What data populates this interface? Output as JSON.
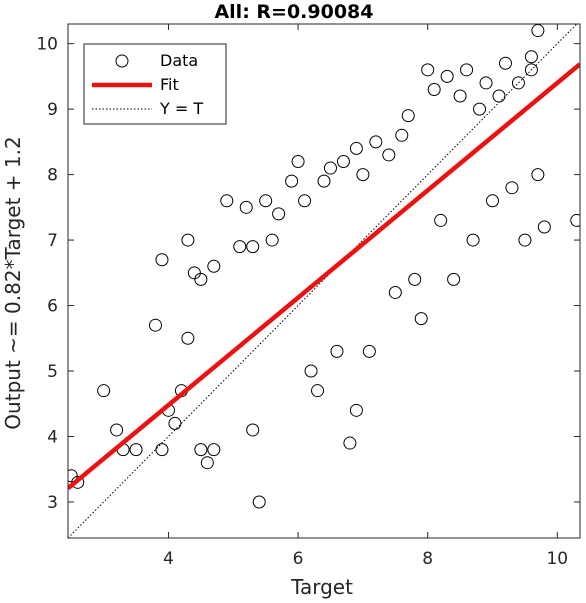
{
  "chart_data": {
    "type": "scatter",
    "title": "All: R=0.90084",
    "xlabel": "Target",
    "ylabel": "Output ~= 0.82*Target + 1.2",
    "xlim": [
      2.45,
      10.35
    ],
    "ylim": [
      2.45,
      10.3
    ],
    "x_ticks": [
      4,
      6,
      8,
      10
    ],
    "y_ticks": [
      3,
      4,
      5,
      6,
      7,
      8,
      9,
      10
    ],
    "grid": false,
    "legend": {
      "position": "top-left",
      "entries": [
        {
          "label": "Data",
          "style": "circle-marker"
        },
        {
          "label": "Fit",
          "style": "red-solid-line"
        },
        {
          "label": "Y = T",
          "style": "black-dotted-line"
        }
      ]
    },
    "fit": {
      "slope": 0.82,
      "intercept": 1.2,
      "color": "#ee1111"
    },
    "identity_line": {
      "color": "#000000"
    },
    "marker_color": "#000000",
    "series": [
      {
        "label": "Data",
        "points": [
          [
            2.5,
            3.4
          ],
          [
            2.6,
            3.3
          ],
          [
            3.0,
            4.7
          ],
          [
            3.2,
            4.1
          ],
          [
            3.3,
            3.8
          ],
          [
            3.5,
            3.8
          ],
          [
            3.9,
            3.8
          ],
          [
            3.8,
            5.7
          ],
          [
            3.9,
            6.7
          ],
          [
            4.0,
            4.4
          ],
          [
            4.1,
            4.2
          ],
          [
            4.2,
            4.7
          ],
          [
            4.3,
            5.5
          ],
          [
            4.3,
            7.0
          ],
          [
            4.4,
            6.5
          ],
          [
            4.5,
            3.8
          ],
          [
            4.5,
            6.4
          ],
          [
            4.6,
            3.6
          ],
          [
            4.7,
            3.8
          ],
          [
            4.7,
            6.6
          ],
          [
            4.9,
            7.6
          ],
          [
            5.1,
            6.9
          ],
          [
            5.2,
            7.5
          ],
          [
            5.3,
            6.9
          ],
          [
            5.3,
            4.1
          ],
          [
            5.4,
            3.0
          ],
          [
            5.5,
            7.6
          ],
          [
            5.6,
            7.0
          ],
          [
            5.7,
            7.4
          ],
          [
            5.9,
            7.9
          ],
          [
            6.0,
            8.2
          ],
          [
            6.1,
            7.6
          ],
          [
            6.2,
            5.0
          ],
          [
            6.3,
            4.7
          ],
          [
            6.4,
            7.9
          ],
          [
            6.5,
            8.1
          ],
          [
            6.6,
            5.3
          ],
          [
            6.7,
            8.2
          ],
          [
            6.8,
            3.9
          ],
          [
            6.9,
            4.4
          ],
          [
            6.9,
            8.4
          ],
          [
            7.0,
            8.0
          ],
          [
            7.1,
            5.3
          ],
          [
            7.2,
            8.5
          ],
          [
            7.4,
            8.3
          ],
          [
            7.5,
            6.2
          ],
          [
            7.6,
            8.6
          ],
          [
            7.7,
            8.9
          ],
          [
            7.8,
            6.4
          ],
          [
            7.9,
            5.8
          ],
          [
            8.0,
            9.6
          ],
          [
            8.1,
            9.3
          ],
          [
            8.2,
            7.3
          ],
          [
            8.3,
            9.5
          ],
          [
            8.4,
            6.4
          ],
          [
            8.5,
            9.2
          ],
          [
            8.6,
            9.6
          ],
          [
            8.7,
            7.0
          ],
          [
            8.8,
            9.0
          ],
          [
            8.9,
            9.4
          ],
          [
            9.0,
            7.6
          ],
          [
            9.1,
            9.2
          ],
          [
            9.2,
            9.7
          ],
          [
            9.3,
            7.8
          ],
          [
            9.4,
            9.4
          ],
          [
            9.5,
            7.0
          ],
          [
            9.6,
            9.6
          ],
          [
            9.7,
            10.2
          ],
          [
            9.8,
            7.2
          ],
          [
            9.7,
            8.0
          ],
          [
            10.3,
            7.3
          ],
          [
            9.6,
            9.8
          ]
        ]
      }
    ]
  }
}
